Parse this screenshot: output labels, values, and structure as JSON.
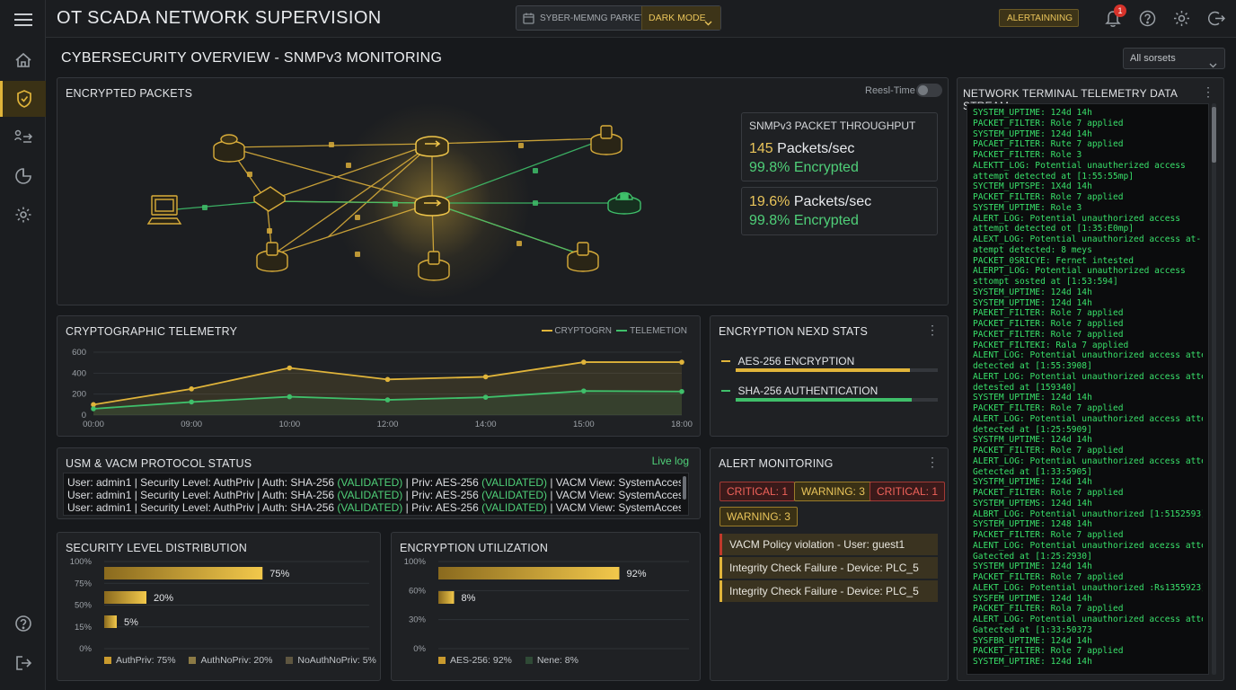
{
  "app": {
    "title": "OT SCADA NETWORK SUPERVISION",
    "packet_selector": "SYBER-MEMNG PARKET",
    "mode_button": "DARK MODE",
    "alert_button": "ALERTAINNING",
    "notification_count": "1"
  },
  "page": {
    "title": "CYBERSECURITY OVERVIEW - SNMPv3 MONITORING",
    "filter_select": "All sorsets"
  },
  "encrypted_packets": {
    "title": "ENCRYPTED PACKETS",
    "realtime_label": "Reesl-Time",
    "realtime_on": false,
    "throughput": {
      "title": "SNMPv3 PACKET THROUGHPUT",
      "cards": [
        {
          "rate": "145",
          "rate_unit": "Packets/sec",
          "encrypted": "99.8% Encrypted"
        },
        {
          "rate": "19.6%",
          "rate_unit": "Packets/sec",
          "encrypted": "99.8% Encrypted"
        }
      ]
    }
  },
  "crypto_telemetry": {
    "title": "CRYPTOGRAPHIC TELEMETRY",
    "chart_data": {
      "type": "line",
      "x": [
        "00:00",
        "09:00",
        "10:00",
        "12:00",
        "14:00",
        "15:00",
        "18:00"
      ],
      "ylim": [
        0,
        600
      ],
      "yticks": [
        0,
        200,
        400,
        600
      ],
      "series": [
        {
          "name": "CRYPTOGRN",
          "color": "#e0b43a",
          "values": [
            100,
            250,
            450,
            340,
            365,
            505,
            505
          ]
        },
        {
          "name": "TELEMETION",
          "color": "#3fbf6a",
          "values": [
            60,
            125,
            175,
            145,
            170,
            230,
            225
          ]
        }
      ]
    }
  },
  "encryption_stats": {
    "title": "ENCRYPTION NEXD STATS",
    "items": [
      {
        "label": "AES-256 ENCRYPTION",
        "color": "#e0b43a",
        "value": 0.86
      },
      {
        "label": "SHA-256 AUTHENTICATION",
        "color": "#3fbf6a",
        "value": 0.87
      }
    ]
  },
  "usm_status": {
    "title": "USM & VACM PROTOCOL STATUS",
    "live_label": "Live log",
    "lines": [
      {
        "pre": "User: admin1 | Security Level: AuthPriv | Auth: SHA-256 ",
        "v1": "(VALIDATED)",
        "mid": " | Priv: AES-256 ",
        "v2": "(VALIDATED)",
        "post": " | VACM View: SystemAccess | Access: Gr"
      },
      {
        "pre": "User: admin1 | Security Level: AuthPriv | Auth: SHA-256 ",
        "v1": "(VALIDATED)",
        "mid": " | Priv: AES-256 ",
        "v2": "(VALIDATED)",
        "post": " | VACM View: SystemAccess | Access: Gr"
      },
      {
        "pre": "User: admin1 | Security Level: AuthPriv | Auth: SHA-256 ",
        "v1": "(VALIDATED)",
        "mid": " | Priv: AES-256 ",
        "v2": "(VALIDATED)",
        "post": " | VACM View: SystemAccess | Access: Gr"
      }
    ]
  },
  "alert_monitoring": {
    "title": "ALERT MONITORING",
    "badges": [
      {
        "label": "CRITICAL: 1",
        "kind": "crit"
      },
      {
        "label": "WARNING: 3",
        "kind": "warn"
      },
      {
        "label": "CRITICAL: 1",
        "kind": "crit"
      },
      {
        "label": "WARNING: 3",
        "kind": "warn"
      }
    ],
    "alerts": [
      {
        "text": "VACM Policy violation - User: guest1",
        "color": "#c0392b"
      },
      {
        "text": "Integrity Check Failure - Device: PLC_5",
        "color": "#e0b43a"
      },
      {
        "text": "Integrity Check Failure - Device: PLC_5",
        "color": "#e0b43a"
      }
    ]
  },
  "security_distribution": {
    "title": "SECURITY LEVEL DISTRIBUTION",
    "chart_data": {
      "type": "bar",
      "orientation": "horizontal",
      "yticks": [
        "100%",
        "75%",
        "50%",
        "15%",
        "0%"
      ],
      "bars": [
        {
          "label": "75%",
          "value": 75
        },
        {
          "label": "20%",
          "value": 20
        },
        {
          "label": "5%",
          "value": 5
        }
      ],
      "legend": [
        "AuthPriv: 75%",
        "AuthNoPriv: 20%",
        "NoAuthNoPriv: 5%"
      ],
      "legend_colors": [
        "#c99a2e",
        "#8c7a45",
        "#5e5640"
      ]
    }
  },
  "encryption_utilization": {
    "title": "ENCRYPTION UTILIZATION",
    "chart_data": {
      "type": "bar",
      "orientation": "horizontal",
      "yticks": [
        "100%",
        "60%",
        "30%",
        "0%"
      ],
      "bars": [
        {
          "label": "92%",
          "value": 92
        },
        {
          "label": "8%",
          "value": 8
        }
      ],
      "legend": [
        "AES-256: 92%",
        "Nene: 8%"
      ],
      "legend_colors": [
        "#c99a2e",
        "#2f4a36"
      ]
    }
  },
  "terminal": {
    "title": "NETWORK TERMINAL TELEMETRY DATA STREAM",
    "lines": [
      "SYSTEM_UPTIME: 124d 14h",
      "PACKET_FILTER: Role 7 applied",
      "SYSTEM_UPTIME: 124d 14h",
      "PACAET_FILTER: Rute 7 applied",
      "PACKET_FILTER: Role 3",
      "ALEKTT_LOG: Potential unautherized access",
      "attempt detected at [1:55:55mp]",
      "SYCTEM_UPTSPE: 1X4d 14h",
      "PACKET_FILTER: Role 7 applied",
      "SYSTEM_UPTIME: Role 3",
      "ALERT_LOG: Potential unauthorized access",
      "attempt detected ot [1:35:E0mp]",
      "ALEXT_LOG: Potential unauthorized access at-",
      "atempt detected: 8 meys",
      "PACKET_0SRICYE: Fernet intested",
      "ALERPT_LOG: Potential unauthorized access",
      "sttompt sosted at [1:53:594]",
      "SYSTEM_UPTIME: 124d 14h",
      "SYSTEM_UPTIME: 124d 14h",
      "PAEKET_FILTER: Role 7 applied",
      "PACKET_FILTER: Role 7 applied",
      "PACKET_FILTER: Role 7 applied",
      "PACKET_FILTEKI: Rala 7 applied",
      "ALENT_LOG: Potential unauthorized access attempt",
      "detected at [1:55:3908]",
      "ALERT_LOG: Potential unauthorized access attempt",
      "detested at [159340]",
      "SYSTEM_UPTIME: 124d 14h",
      "PACKET_FILTER: Role 7 applied",
      "ALERT_LOG: Potential unauthorized access attempt",
      "detected at [1:25:5909]",
      "SYSTFM_UPTIME: 124d 14h",
      "PACKET_FILTER: Role 7 applied",
      "ALERT_LOG: Potential unauthorized access attempt",
      "Getected at [1:33:5905]",
      "SYSTFM_UPTIME: 124d 14h",
      "PACKET_FILTER: Role 7 applied",
      "SYSTEM_UPTEMS: 124d 14h",
      "ALBRT_LOG: Potential unauthorized [1:5152593]",
      "SYSTEM_UPTIME: 1248 14h",
      "PACKET_FILTER: Role 7 applied",
      "ALENT_LOG: Potential unauthorized acezss attempt",
      "Gatected at [1:25:2930]",
      "SYSTEM_UPTIME: 124d 14h",
      "PACKET_FILTER: Role 7 applied",
      "ALEKT_LOG: Potential unauthorized :Rs1355923]",
      "SYSFEM_UPTIME: 124d 14h",
      "PACKET_FILTER: Rola 7 applied",
      "ALERT_LOG: Potential unauthorized access attempt",
      "Gatected at [1:33:50373",
      "SYSFBR_UPTIME: 124d 14h",
      "PACKET_FILTER: Role 7 applied",
      "SYSTEM_UPTIRE: 124d 14h"
    ]
  }
}
